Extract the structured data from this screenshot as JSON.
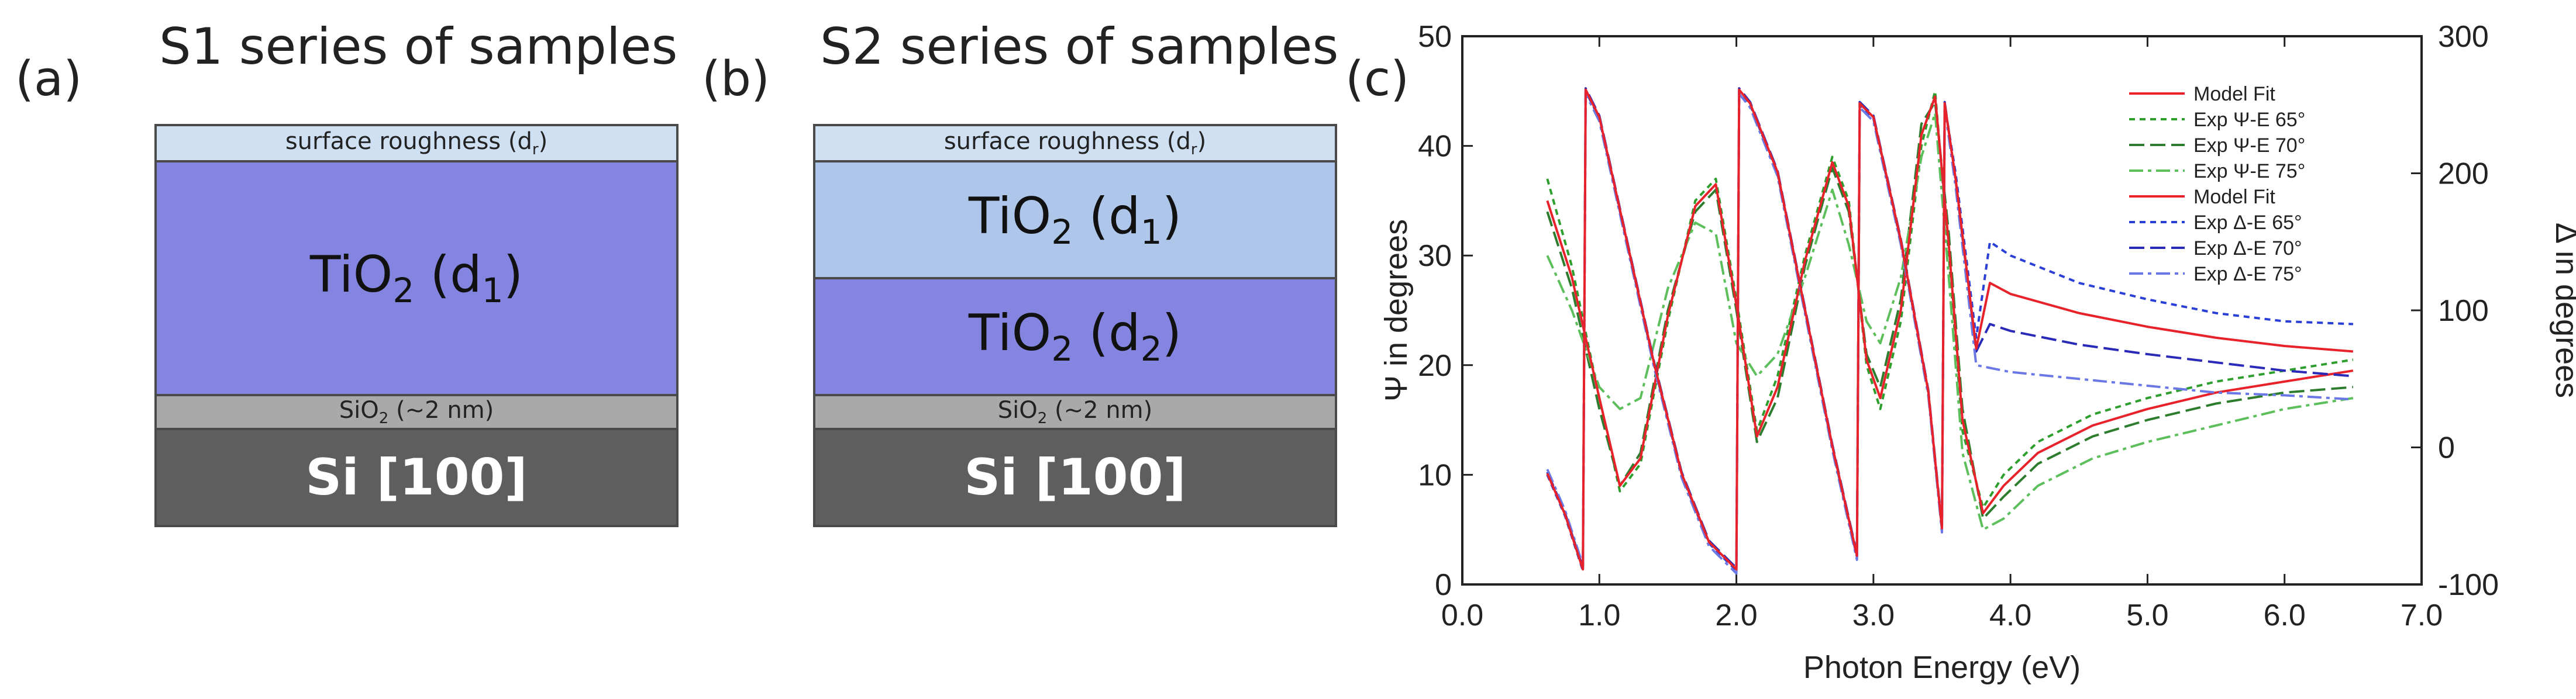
{
  "panel_a": {
    "label": "(a)",
    "title": "S1 series of samples",
    "layers": {
      "roughness": "surface roughness (d",
      "roughness_sub": "r",
      "tio2_main": "TiO",
      "tio2_sub": "2",
      "tio2_d": " (d",
      "tio2_d_sub": "1",
      "sio2": "SiO",
      "sio2_sub": "2",
      "sio2_rest": " (~2 nm)",
      "si": "Si [100]"
    }
  },
  "panel_b": {
    "label": "(b)",
    "title": "S2 series of samples",
    "layers": {
      "roughness": "surface roughness (d",
      "roughness_sub": "r",
      "tio2_top": "TiO",
      "tio2_top_sub": "2",
      "tio2_top_d": " (d",
      "tio2_top_d_sub": "1",
      "tio2_bot": "TiO",
      "tio2_bot_sub": "2",
      "tio2_bot_d": " (d",
      "tio2_bot_d_sub": "2",
      "sio2": "SiO",
      "sio2_sub": "2",
      "sio2_rest": " (~2 nm)",
      "si": "Si [100]"
    }
  },
  "panel_c": {
    "label": "(c)"
  },
  "chart_data": {
    "type": "line",
    "title": "",
    "xlabel": "Photon Energy (eV)",
    "ylabel": "Ψ in degrees",
    "y2label": "Δ in degrees",
    "xlim": [
      0.0,
      7.0
    ],
    "ylim": [
      0,
      50
    ],
    "y2lim": [
      -100,
      300
    ],
    "xticks": [
      0.0,
      1.0,
      2.0,
      3.0,
      4.0,
      5.0,
      6.0,
      7.0
    ],
    "xtick_labels": [
      "0.0",
      "1.0",
      "2.0",
      "3.0",
      "4.0",
      "5.0",
      "6.0",
      "7.0"
    ],
    "yticks": [
      0,
      10,
      20,
      30,
      40,
      50
    ],
    "y2ticks": [
      -100,
      0,
      100,
      200,
      300
    ],
    "legend_position": "top-right",
    "legend": [
      {
        "label": "Model Fit",
        "color": "#e8222a",
        "dash": "solid"
      },
      {
        "label": "Exp Ψ-E 65°",
        "color": "#2e9e2e",
        "dash": "short"
      },
      {
        "label": "Exp Ψ-E 70°",
        "color": "#2e7d2e",
        "dash": "long"
      },
      {
        "label": "Exp Ψ-E 75°",
        "color": "#5cbf5c",
        "dash": "dashdot"
      },
      {
        "label": "Model Fit",
        "color": "#e8222a",
        "dash": "solid"
      },
      {
        "label": "Exp Δ-E 65°",
        "color": "#2a3fd6",
        "dash": "short"
      },
      {
        "label": "Exp Δ-E 70°",
        "color": "#2a2ab8",
        "dash": "long"
      },
      {
        "label": "Exp Δ-E 75°",
        "color": "#6a78e6",
        "dash": "dashdot"
      }
    ],
    "series": [
      {
        "name": "Exp Ψ-E 65°",
        "axis": "left",
        "color": "#2e9e2e",
        "dash": "short",
        "x": [
          0.62,
          0.8,
          1.0,
          1.15,
          1.3,
          1.5,
          1.7,
          1.85,
          2.0,
          2.15,
          2.3,
          2.5,
          2.7,
          2.82,
          2.95,
          3.05,
          3.2,
          3.35,
          3.45,
          3.55,
          3.65,
          3.8,
          3.95,
          4.2,
          4.6,
          5.0,
          5.5,
          6.0,
          6.5
        ],
        "y": [
          37,
          29,
          17,
          8.5,
          11,
          24,
          35,
          37,
          26,
          14,
          19,
          30,
          39,
          35,
          20,
          16,
          24,
          40,
          45,
          30,
          14,
          7,
          10,
          13,
          15.5,
          17,
          18.5,
          19.5,
          20.5
        ]
      },
      {
        "name": "Exp Ψ-E 70°",
        "axis": "left",
        "color": "#2e7d2e",
        "dash": "long",
        "x": [
          0.62,
          0.8,
          1.0,
          1.15,
          1.3,
          1.5,
          1.7,
          1.85,
          2.0,
          2.15,
          2.3,
          2.5,
          2.7,
          2.82,
          2.95,
          3.05,
          3.2,
          3.35,
          3.45,
          3.55,
          3.65,
          3.8,
          3.95,
          4.2,
          4.6,
          5.0,
          5.5,
          6.0,
          6.5
        ],
        "y": [
          34,
          27,
          16,
          9,
          12,
          25,
          34,
          36,
          25,
          13,
          17,
          29,
          38,
          34,
          21,
          18,
          26,
          42,
          44,
          32,
          16,
          6,
          8,
          11,
          13.5,
          15,
          16.5,
          17.5,
          18
        ]
      },
      {
        "name": "Exp Ψ-E 75°",
        "axis": "left",
        "color": "#5cbf5c",
        "dash": "dashdot",
        "x": [
          0.62,
          0.8,
          1.0,
          1.15,
          1.3,
          1.5,
          1.7,
          1.85,
          2.0,
          2.15,
          2.3,
          2.5,
          2.7,
          2.82,
          2.95,
          3.05,
          3.2,
          3.35,
          3.45,
          3.55,
          3.65,
          3.8,
          3.95,
          4.2,
          4.6,
          5.0,
          5.5,
          6.0,
          6.5
        ],
        "y": [
          30,
          25,
          18,
          16,
          17,
          27,
          33,
          32,
          22,
          19,
          21,
          28,
          36,
          31,
          24,
          22,
          28,
          39,
          43,
          28,
          12,
          5,
          6,
          9,
          11.5,
          13,
          14.5,
          16,
          17
        ]
      },
      {
        "name": "Model Fit Ψ",
        "axis": "left",
        "color": "#e8222a",
        "dash": "solid",
        "x": [
          0.62,
          0.8,
          1.0,
          1.15,
          1.3,
          1.5,
          1.7,
          1.85,
          2.0,
          2.15,
          2.3,
          2.5,
          2.7,
          2.82,
          2.95,
          3.05,
          3.2,
          3.35,
          3.45,
          3.55,
          3.65,
          3.8,
          3.95,
          4.2,
          4.6,
          5.0,
          5.5,
          6.0,
          6.5
        ],
        "y": [
          35,
          28,
          17,
          9,
          11.5,
          24.5,
          34.5,
          36.5,
          25.5,
          13.5,
          18,
          29.5,
          38.5,
          34.5,
          20.5,
          17,
          25,
          41,
          44.5,
          31,
          15,
          6.5,
          9,
          12,
          14.5,
          16,
          17.5,
          18.5,
          19.5
        ]
      },
      {
        "name": "Exp Δ-E 65°",
        "axis": "right",
        "color": "#2a3fd6",
        "dash": "short",
        "x": [
          0.62,
          0.75,
          0.88,
          0.9,
          1.0,
          1.2,
          1.4,
          1.6,
          1.8,
          2.0,
          2.02,
          2.1,
          2.3,
          2.5,
          2.7,
          2.88,
          2.9,
          3.0,
          3.2,
          3.4,
          3.5,
          3.52,
          3.6,
          3.75,
          3.85,
          4.0,
          4.5,
          5.0,
          5.5,
          6.0,
          6.5
        ],
        "y": [
          -20,
          -50,
          -90,
          260,
          240,
          150,
          60,
          -20,
          -70,
          -90,
          260,
          250,
          200,
          100,
          0,
          -80,
          250,
          240,
          150,
          40,
          -60,
          250,
          200,
          80,
          150,
          140,
          120,
          108,
          98,
          92,
          90
        ]
      },
      {
        "name": "Exp Δ-E 70°",
        "axis": "right",
        "color": "#2a2ab8",
        "dash": "long",
        "x": [
          0.62,
          0.75,
          0.88,
          0.9,
          1.0,
          1.2,
          1.4,
          1.6,
          1.8,
          2.0,
          2.02,
          2.1,
          2.3,
          2.5,
          2.7,
          2.88,
          2.9,
          3.0,
          3.2,
          3.4,
          3.5,
          3.52,
          3.6,
          3.75,
          3.85,
          4.0,
          4.5,
          5.0,
          5.5,
          6.0,
          6.5
        ],
        "y": [
          -18,
          -48,
          -88,
          262,
          242,
          152,
          62,
          -18,
          -68,
          -88,
          262,
          252,
          202,
          102,
          2,
          -78,
          252,
          242,
          152,
          42,
          -58,
          252,
          195,
          70,
          90,
          85,
          75,
          68,
          62,
          56,
          52
        ]
      },
      {
        "name": "Exp Δ-E 75°",
        "axis": "right",
        "color": "#6a78e6",
        "dash": "dashdot",
        "x": [
          0.62,
          0.75,
          0.88,
          0.9,
          1.0,
          1.2,
          1.4,
          1.6,
          1.8,
          2.0,
          2.02,
          2.1,
          2.3,
          2.5,
          2.7,
          2.88,
          2.9,
          3.0,
          3.2,
          3.4,
          3.5,
          3.52,
          3.6,
          3.75,
          3.85,
          4.0,
          4.5,
          5.0,
          5.5,
          6.0,
          6.5
        ],
        "y": [
          -16,
          -46,
          -86,
          258,
          238,
          148,
          58,
          -22,
          -72,
          -92,
          258,
          248,
          198,
          98,
          -2,
          -82,
          248,
          238,
          148,
          38,
          -62,
          248,
          190,
          60,
          58,
          55,
          50,
          45,
          40,
          38,
          35
        ]
      },
      {
        "name": "Model Fit Δ",
        "axis": "right",
        "color": "#e8222a",
        "dash": "solid",
        "x": [
          0.62,
          0.75,
          0.88,
          0.9,
          1.0,
          1.2,
          1.4,
          1.6,
          1.8,
          2.0,
          2.02,
          2.1,
          2.3,
          2.5,
          2.7,
          2.88,
          2.9,
          3.0,
          3.2,
          3.4,
          3.5,
          3.52,
          3.6,
          3.75,
          3.85,
          4.0,
          4.5,
          5.0,
          5.5,
          6.0,
          6.5
        ],
        "y": [
          -19,
          -49,
          -89,
          261,
          241,
          151,
          61,
          -19,
          -69,
          -89,
          261,
          251,
          201,
          101,
          1,
          -79,
          251,
          241,
          151,
          41,
          -59,
          251,
          196,
          72,
          120,
          112,
          98,
          88,
          80,
          74,
          70
        ]
      }
    ]
  }
}
